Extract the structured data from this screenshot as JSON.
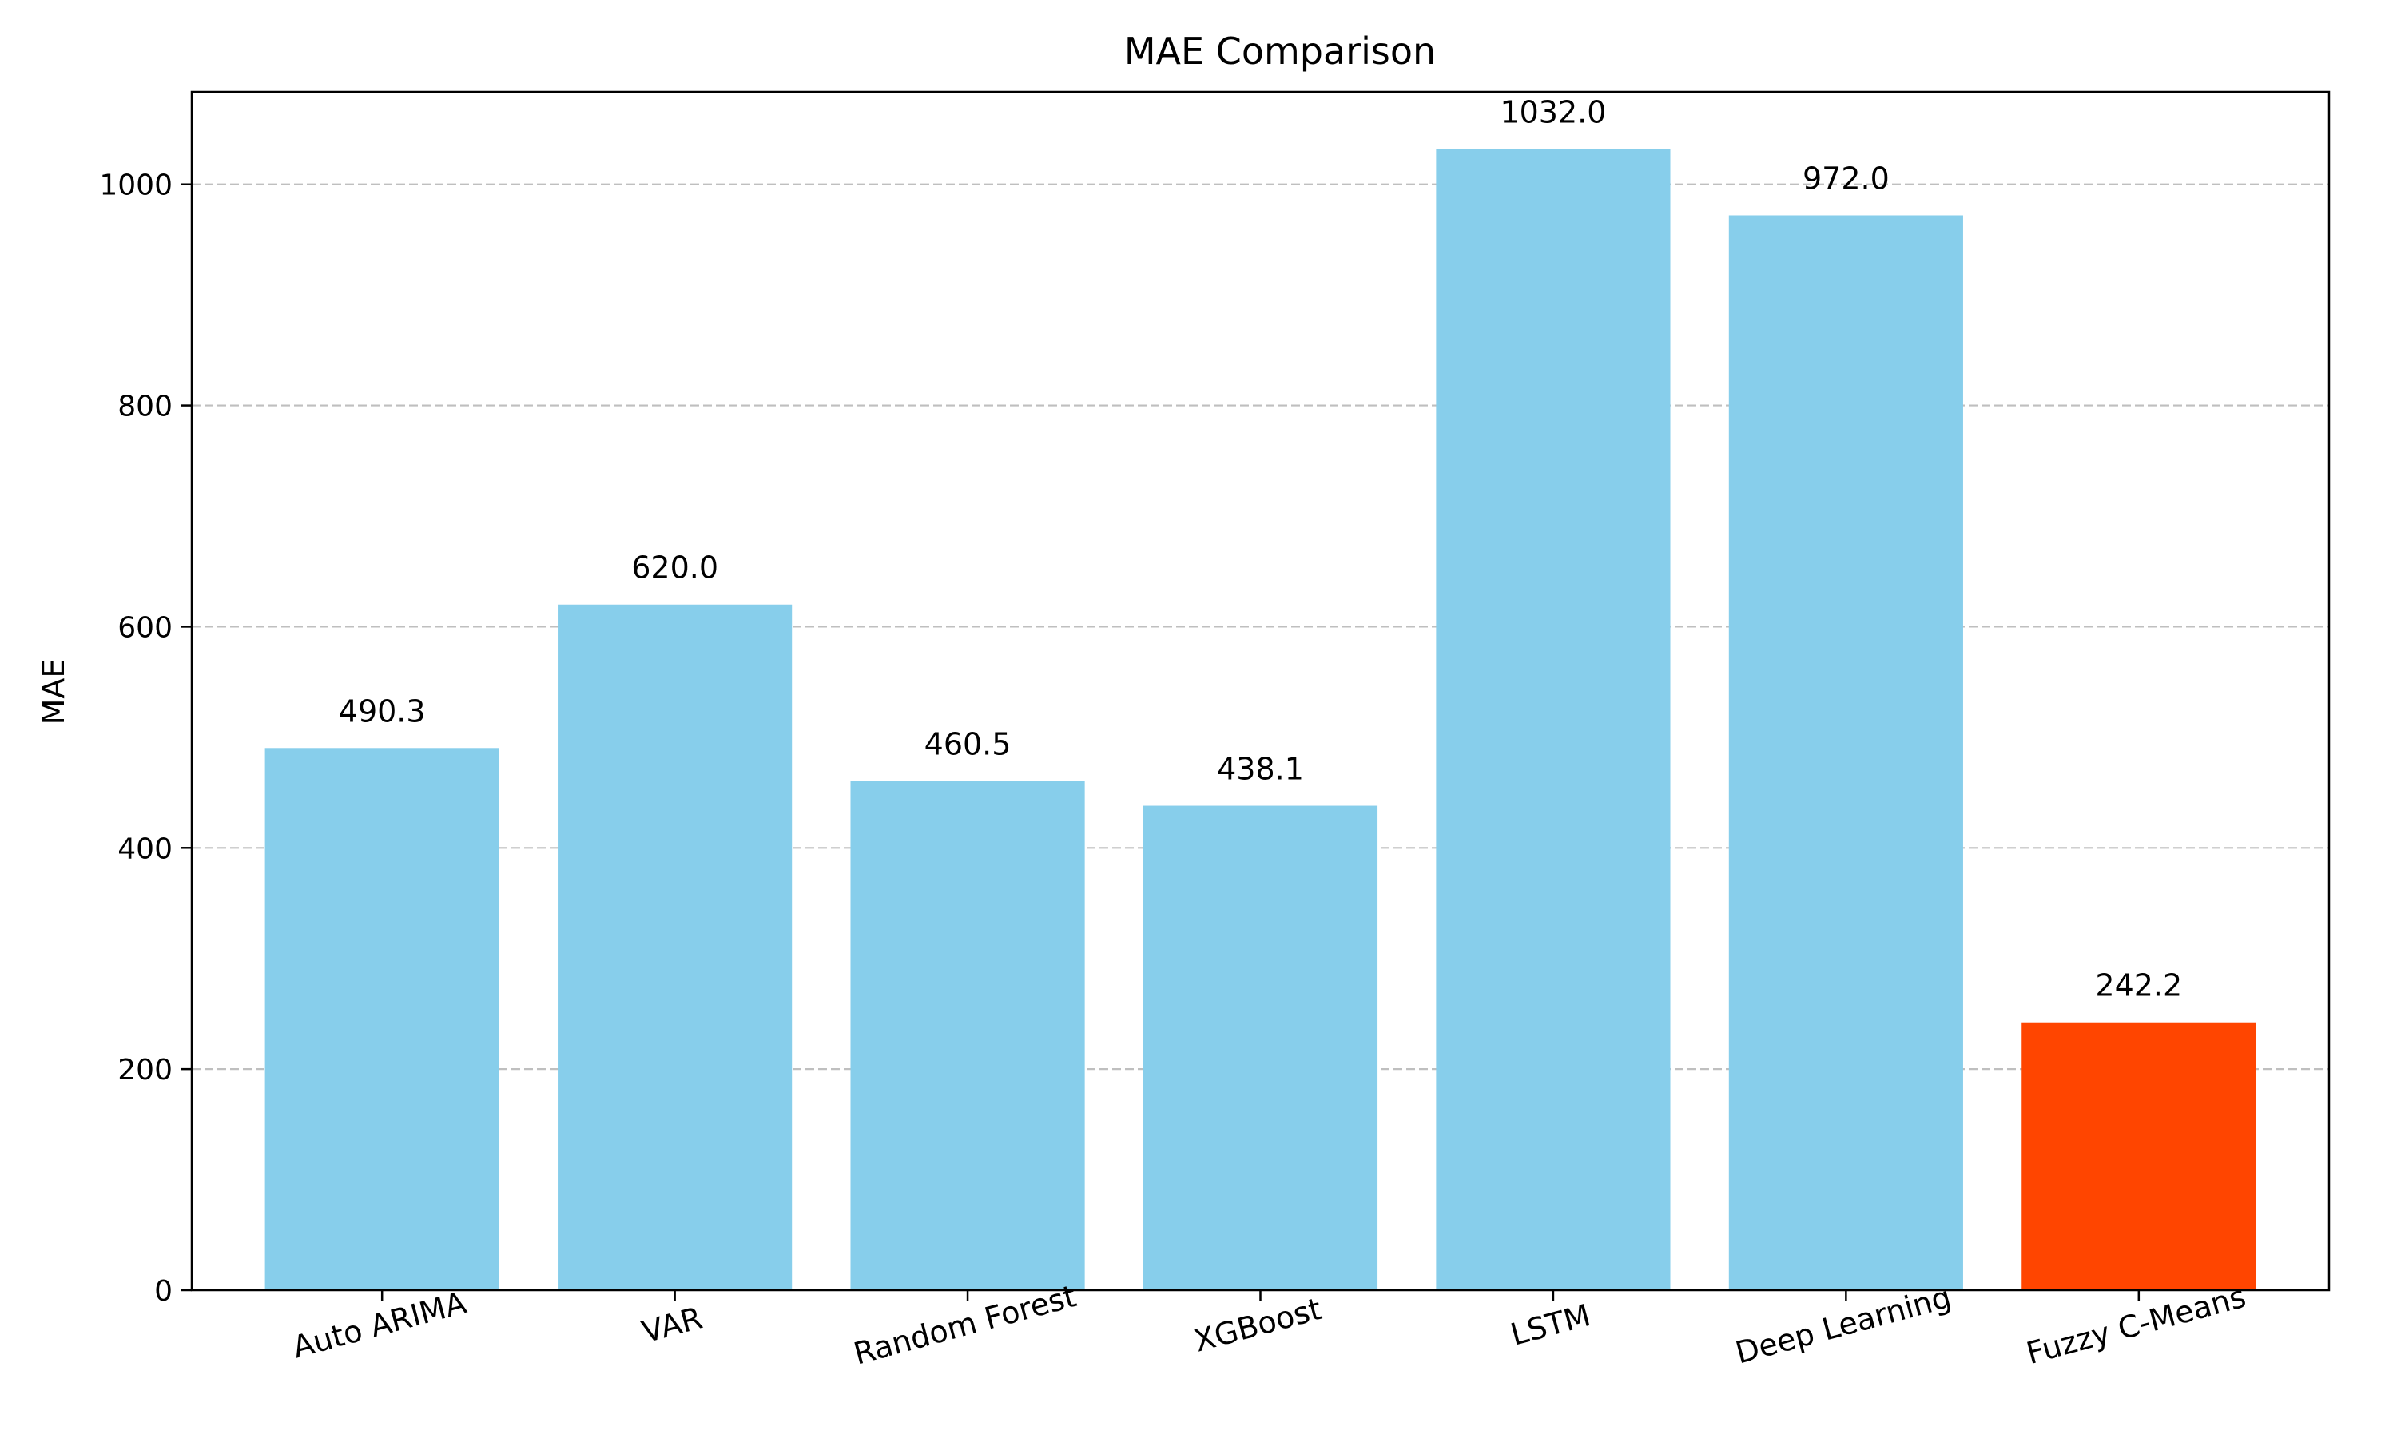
{
  "chart_data": {
    "type": "bar",
    "title": "MAE Comparison",
    "xlabel": "",
    "ylabel": "MAE",
    "categories": [
      "Auto ARIMA",
      "VAR",
      "Random Forest",
      "XGBoost",
      "LSTM",
      "Deep Learning",
      "Fuzzy C-Means"
    ],
    "values": [
      490.3,
      620.0,
      460.5,
      438.1,
      1032.0,
      972.0,
      242.2
    ],
    "value_labels": [
      "490.3",
      "620.0",
      "460.5",
      "438.1",
      "1032.0",
      "972.0",
      "242.2"
    ],
    "bar_colors": [
      "#87CEEB",
      "#87CEEB",
      "#87CEEB",
      "#87CEEB",
      "#87CEEB",
      "#87CEEB",
      "#FF4500"
    ],
    "ylim": [
      0,
      1083.6
    ],
    "yticks": [
      0,
      200,
      400,
      600,
      800,
      1000
    ],
    "ytick_labels": [
      "0",
      "200",
      "400",
      "600",
      "800",
      "1000"
    ],
    "grid": "y-dashed",
    "legend": "none"
  }
}
